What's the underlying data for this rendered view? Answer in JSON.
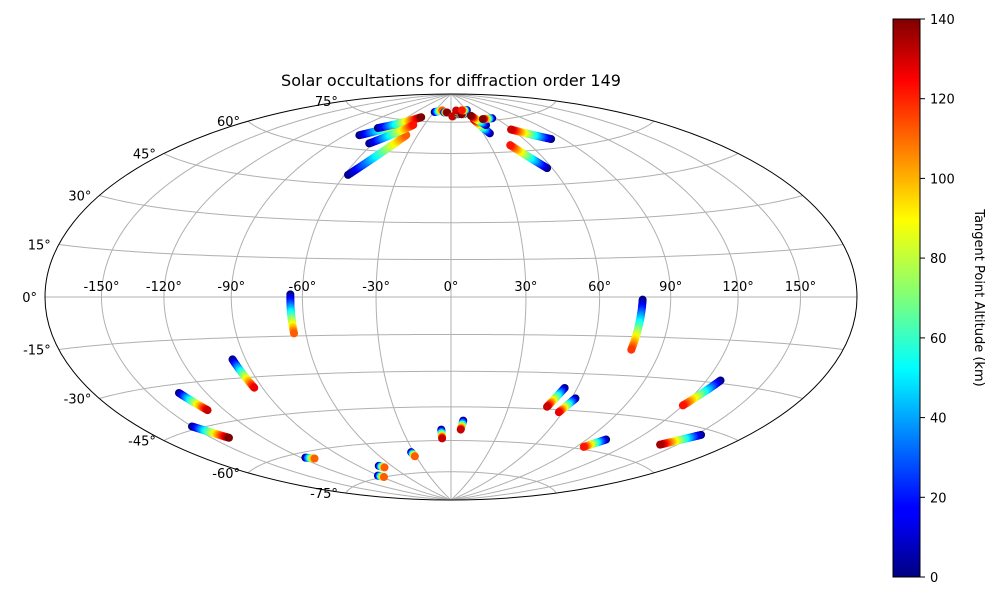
{
  "chart_data": {
    "type": "scatter",
    "projection": "hammer",
    "title": "Solar occultations for diffraction order 149",
    "xlabel": "",
    "ylabel": "",
    "longitude_ticks": [
      "-150°",
      "-120°",
      "-90°",
      "-60°",
      "-30°",
      "0°",
      "30°",
      "60°",
      "90°",
      "120°",
      "150°"
    ],
    "latitude_ticks": [
      "-75°",
      "-60°",
      "-45°",
      "-30°",
      "-15°",
      "0°",
      "15°",
      "30°",
      "45°",
      "60°",
      "75°"
    ],
    "grid": true,
    "colorbar": {
      "label": "Tangent Point Altitude (km)",
      "colormap": "jet",
      "range": [
        0,
        140
      ],
      "ticks": [
        "0",
        "20",
        "40",
        "60",
        "80",
        "100",
        "120",
        "140"
      ]
    },
    "tracks": [
      {
        "lon_start": -150,
        "lat_start": -44,
        "lon_end": -140,
        "lat_end": -50,
        "alt_start": 0,
        "alt_end": 140
      },
      {
        "lon_start": -134,
        "lat_start": -33,
        "lon_end": -129,
        "lat_end": -40,
        "alt_start": 0,
        "alt_end": 130
      },
      {
        "lon_start": -117,
        "lat_start": -62,
        "lon_end": -112,
        "lat_end": -63,
        "alt_start": 0,
        "alt_end": 110
      },
      {
        "lon_start": -96,
        "lat_start": -23,
        "lon_end": -94,
        "lat_end": -34,
        "alt_start": 0,
        "alt_end": 125
      },
      {
        "lon_start": -91,
        "lat_start": -74,
        "lon_end": -88,
        "lat_end": -75,
        "alt_start": 0,
        "alt_end": 110
      },
      {
        "lon_start": -65,
        "lat_start": 1,
        "lon_end": -65,
        "lat_end": -14,
        "alt_start": 0,
        "alt_end": 110
      },
      {
        "lon_start": -72,
        "lat_start": -70,
        "lon_end": -69,
        "lat_end": -71,
        "alt_start": 0,
        "alt_end": 110
      },
      {
        "lon_start": -32,
        "lat_start": -65,
        "lon_end": -31,
        "lat_end": -67,
        "alt_start": 0,
        "alt_end": 110
      },
      {
        "lon_start": -6,
        "lat_start": -55,
        "lon_end": -6,
        "lat_end": -59,
        "alt_start": 0,
        "alt_end": 130
      },
      {
        "lon_start": 7,
        "lat_start": -51,
        "lon_end": 6,
        "lat_end": -55,
        "alt_start": 0,
        "alt_end": 130
      },
      {
        "lon_start": 54,
        "lat_start": -36,
        "lon_end": 50,
        "lat_end": -44,
        "alt_start": 0,
        "alt_end": 130
      },
      {
        "lon_start": 62,
        "lat_start": -40,
        "lon_end": 58,
        "lat_end": -46,
        "alt_start": 0,
        "alt_end": 125
      },
      {
        "lon_start": 78,
        "lat_start": -1,
        "lon_end": 77,
        "lat_end": -20,
        "alt_start": 0,
        "alt_end": 115
      },
      {
        "lon_start": 102,
        "lat_start": -55,
        "lon_end": 95,
        "lat_end": -59,
        "alt_start": 0,
        "alt_end": 120
      },
      {
        "lon_start": 127,
        "lat_start": -29,
        "lon_end": 120,
        "lat_end": -39,
        "alt_start": 0,
        "alt_end": 120
      },
      {
        "lon_start": 153,
        "lat_start": -47,
        "lon_end": 140,
        "lat_end": -53,
        "alt_start": 0,
        "alt_end": 135
      },
      {
        "lon_start": -58,
        "lat_start": 49,
        "lon_end": -40,
        "lat_end": 68,
        "alt_start": 0,
        "alt_end": 110
      },
      {
        "lon_start": -79,
        "lat_start": 66,
        "lon_end": -52,
        "lat_end": 74,
        "alt_start": 0,
        "alt_end": 130
      },
      {
        "lon_start": -73,
        "lat_start": 70,
        "lon_end": -42,
        "lat_end": 77,
        "alt_start": 0,
        "alt_end": 140
      },
      {
        "lon_start": -63,
        "lat_start": 63,
        "lon_end": -42,
        "lat_end": 73,
        "alt_start": 0,
        "alt_end": 120
      },
      {
        "lon_start": -29,
        "lat_start": 80,
        "lon_end": -17,
        "lat_end": 81,
        "alt_start": 0,
        "alt_end": 110
      },
      {
        "lon_start": -12,
        "lat_start": 80,
        "lon_end": -7,
        "lat_end": 80,
        "alt_start": 0,
        "alt_end": 140
      },
      {
        "lon_start": 3,
        "lat_start": 78,
        "lon_end": 2,
        "lat_end": 78,
        "alt_start": 0,
        "alt_end": 130
      },
      {
        "lon_start": 12,
        "lat_start": 79,
        "lon_end": 10,
        "lat_end": 80,
        "alt_start": 0,
        "alt_end": 140
      },
      {
        "lon_start": 13,
        "lat_start": 80,
        "lon_end": 10,
        "lat_end": 81,
        "alt_start": 0,
        "alt_end": 130
      },
      {
        "lon_start": 21,
        "lat_start": 79,
        "lon_end": 17,
        "lat_end": 79,
        "alt_start": 0,
        "alt_end": 140
      },
      {
        "lon_start": 31,
        "lat_start": 81,
        "lon_end": 21,
        "lat_end": 81,
        "alt_start": 0,
        "alt_end": 120
      },
      {
        "lon_start": 36,
        "lat_start": 69,
        "lon_end": 30,
        "lat_end": 76,
        "alt_start": 0,
        "alt_end": 130
      },
      {
        "lon_start": 39,
        "lat_start": 73,
        "lon_end": 30,
        "lat_end": 78,
        "alt_start": 0,
        "alt_end": 140
      },
      {
        "lon_start": 55,
        "lat_start": 76,
        "lon_end": 42,
        "lat_end": 76,
        "alt_start": 0,
        "alt_end": 140
      },
      {
        "lon_start": 57,
        "lat_start": 52,
        "lon_end": 45,
        "lat_end": 63,
        "alt_start": 0,
        "alt_end": 120
      },
      {
        "lon_start": 81,
        "lat_start": 64,
        "lon_end": 59,
        "lat_end": 70,
        "alt_start": 0,
        "alt_end": 130
      }
    ]
  }
}
